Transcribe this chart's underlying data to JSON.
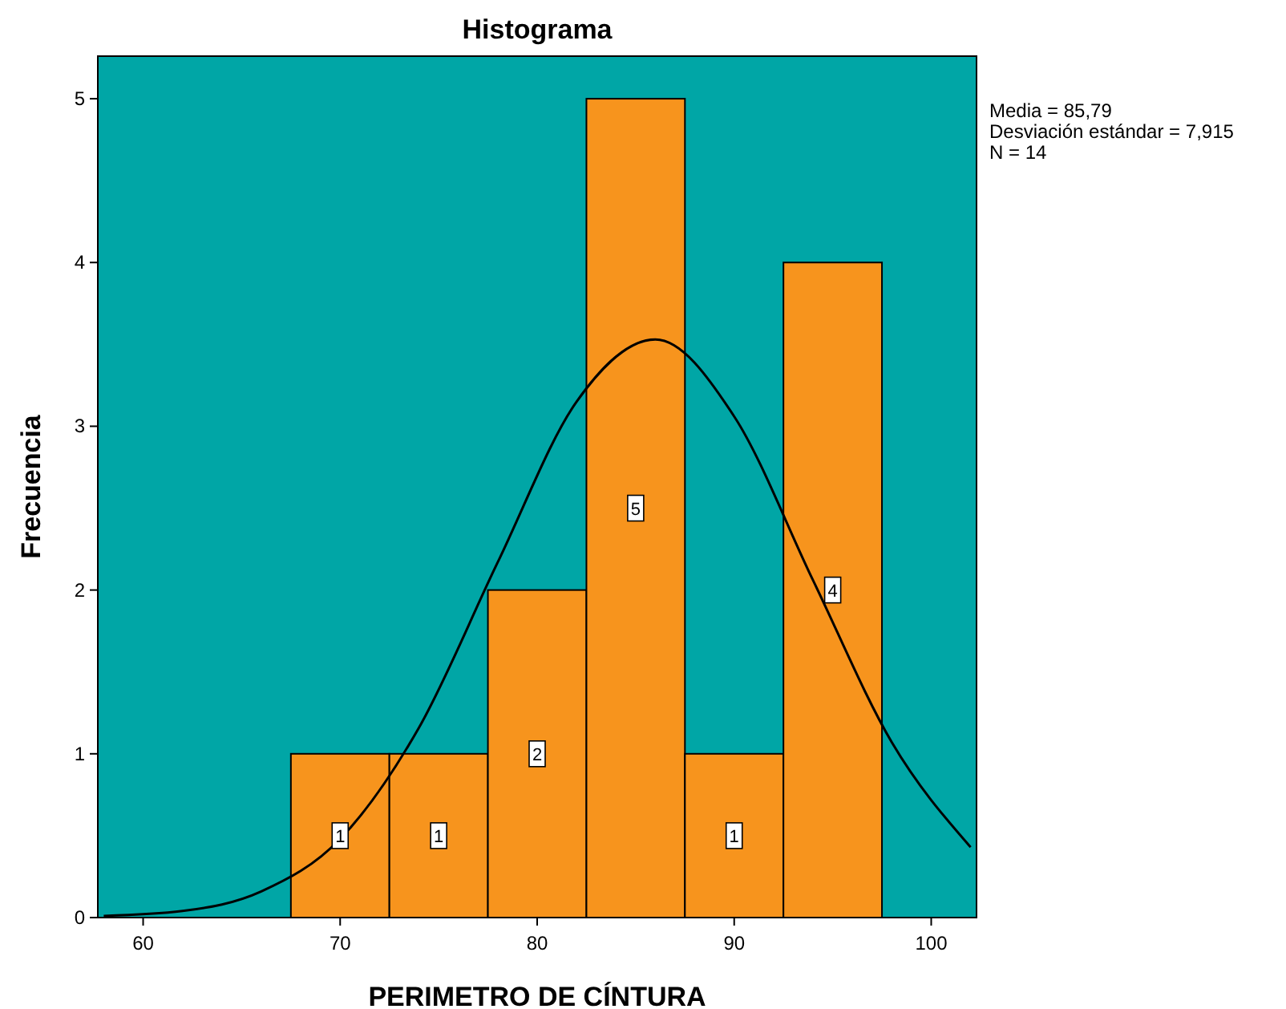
{
  "chart_data": {
    "type": "histogram",
    "title": "Histograma",
    "xlabel": "PERIMETRO DE CÍNTURA",
    "ylabel": "Frecuencia",
    "bins": [
      67.5,
      72.5,
      77.5,
      82.5,
      87.5,
      92.5,
      97.5
    ],
    "values": [
      1,
      1,
      2,
      5,
      1,
      4
    ],
    "color": "#f7941d",
    "value_labels": [
      "1",
      "1",
      "2",
      "5",
      "1",
      "4"
    ],
    "xlim": [
      57.7,
      102.3
    ],
    "xticks": [
      60,
      70,
      80,
      90,
      100
    ],
    "ylim": [
      0,
      5.26
    ],
    "yticks": [
      0,
      1,
      2,
      3,
      4,
      5
    ],
    "series": [
      {
        "type": "line",
        "color": "#000000",
        "x": [
          58,
          62,
          66,
          70,
          74,
          78,
          82,
          86,
          90,
          94,
          98,
          102
        ],
        "values": [
          0.01,
          0.04,
          0.16,
          0.48,
          1.16,
          2.17,
          3.15,
          3.53,
          3.06,
          2.06,
          1.07,
          0.43
        ]
      }
    ],
    "annotations": [
      "Media = 85,79",
      "Desviación estándar = 7,915",
      "N = 14"
    ]
  }
}
